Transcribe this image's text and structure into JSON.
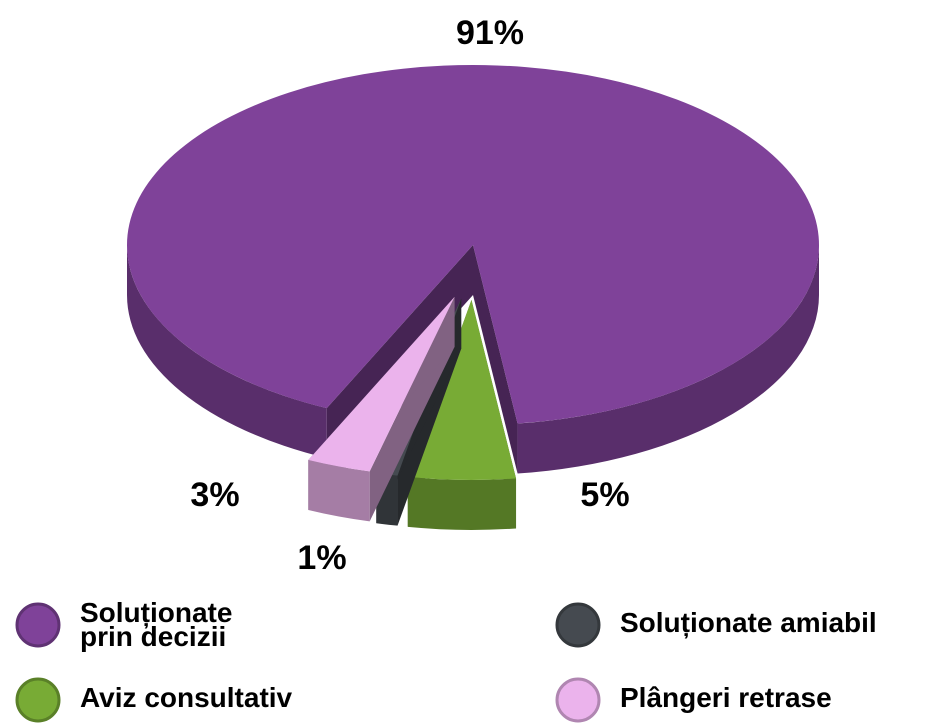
{
  "chart_data": {
    "type": "pie",
    "categories": [
      "Soluționate prin decizii",
      "Aviz consultativ",
      "Soluționate amiabil",
      "Plângeri retrase"
    ],
    "values": [
      91,
      5,
      1,
      3
    ],
    "value_labels": [
      "91%",
      "5%",
      "1%",
      "3%"
    ],
    "colors": [
      "#7f4299",
      "#78ab35",
      "#454a50",
      "#ebb3ec"
    ]
  }
}
